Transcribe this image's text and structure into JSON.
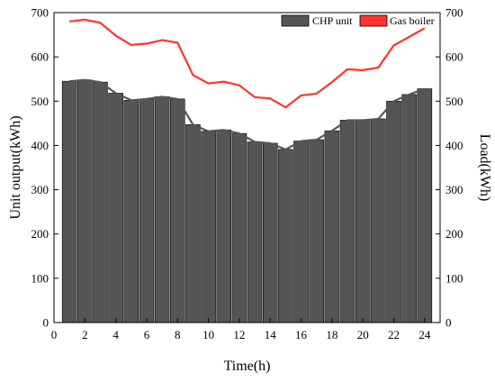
{
  "chart_data": {
    "type": "bar",
    "xlabel": "Time(h)",
    "ylabel_left": "Unit output(kWh)",
    "ylabel_right": "Load(kWh)",
    "xlim": [
      0,
      25
    ],
    "ylim": [
      0,
      700
    ],
    "xticks": [
      0,
      2,
      4,
      6,
      8,
      10,
      12,
      14,
      16,
      18,
      20,
      22,
      24
    ],
    "yticks": [
      0,
      100,
      200,
      300,
      400,
      500,
      600,
      700
    ],
    "x": [
      1,
      2,
      3,
      4,
      5,
      6,
      7,
      8,
      9,
      10,
      11,
      12,
      13,
      14,
      15,
      16,
      17,
      18,
      19,
      20,
      21,
      22,
      23,
      24
    ],
    "series": [
      {
        "name": "CHP unit",
        "kind": "bar",
        "color": "#555555",
        "values": [
          545,
          548,
          543,
          518,
          502,
          505,
          510,
          505,
          447,
          432,
          435,
          427,
          408,
          405,
          391,
          410,
          413,
          433,
          457,
          457,
          460,
          500,
          515,
          528
        ]
      },
      {
        "name": "Gas boiler",
        "kind": "line",
        "color": "#ff3333",
        "values": [
          680,
          684,
          677,
          648,
          627,
          630,
          638,
          632,
          559,
          540,
          544,
          536,
          509,
          506,
          486,
          513,
          517,
          543,
          572,
          570,
          576,
          626,
          645,
          665
        ]
      }
    ],
    "bar_outline_line": {
      "color": "#555555",
      "values": [
        545,
        548,
        543,
        518,
        502,
        505,
        510,
        505,
        447,
        432,
        435,
        427,
        408,
        405,
        391,
        410,
        413,
        433,
        457,
        457,
        460,
        500,
        515,
        528
      ]
    },
    "legend": {
      "placement": "top-right",
      "items": [
        "CHP unit",
        "Gas boiler"
      ]
    }
  }
}
